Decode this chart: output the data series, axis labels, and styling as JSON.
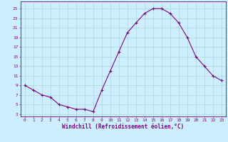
{
  "x": [
    0,
    1,
    2,
    3,
    4,
    5,
    6,
    7,
    8,
    9,
    10,
    11,
    12,
    13,
    14,
    15,
    16,
    17,
    18,
    19,
    20,
    21,
    22,
    23
  ],
  "y": [
    9,
    8,
    7,
    6.5,
    5,
    4.5,
    4,
    4,
    3.5,
    8,
    12,
    16,
    20,
    22,
    24,
    25,
    25,
    24,
    22,
    19,
    15,
    13,
    11,
    10
  ],
  "line_color": "#800080",
  "marker": "+",
  "marker_size": 3,
  "marker_lw": 0.8,
  "line_width": 0.8,
  "bg_color": "#cceeff",
  "grid_color": "#aacccc",
  "xlabel": "Windchill (Refroidissement éolien,°C)",
  "xlabel_color": "#800080",
  "ytick_values": [
    3,
    5,
    7,
    9,
    11,
    13,
    15,
    17,
    19,
    21,
    23,
    25
  ],
  "ytick_labels": [
    "3",
    "5",
    "7",
    "9",
    "11",
    "13",
    "15",
    "17",
    "19",
    "21",
    "23",
    "25"
  ],
  "xtick_values": [
    0,
    1,
    2,
    3,
    4,
    5,
    6,
    7,
    8,
    9,
    10,
    11,
    12,
    13,
    14,
    15,
    16,
    17,
    18,
    19,
    20,
    21,
    22,
    23
  ],
  "xtick_labels": [
    "0",
    "1",
    "2",
    "3",
    "4",
    "5",
    "6",
    "7",
    "8",
    "9",
    "10",
    "11",
    "12",
    "13",
    "14",
    "15",
    "16",
    "17",
    "18",
    "19",
    "20",
    "21",
    "22",
    "23"
  ],
  "ylim": [
    2.5,
    26.5
  ],
  "xlim": [
    -0.5,
    23.5
  ],
  "tick_fontsize": 4.5,
  "xlabel_fontsize": 5.5
}
